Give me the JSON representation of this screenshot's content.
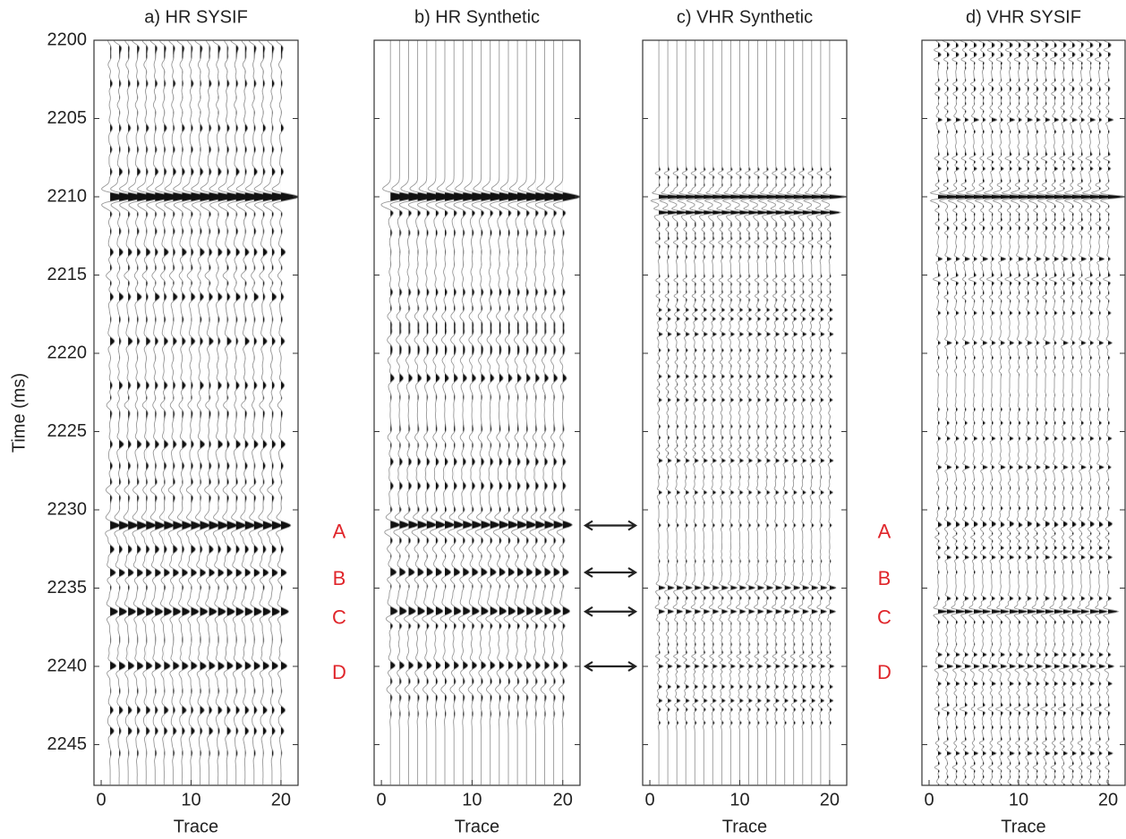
{
  "chart_data": [
    {
      "type": "wiggle",
      "title": "a) HR SYSIF",
      "xlabel": "Trace",
      "ylabel": "Time (ms)",
      "x": [
        1,
        2,
        3,
        4,
        5,
        6,
        7,
        8,
        9,
        10,
        11,
        12,
        13,
        14,
        15,
        16,
        17,
        18,
        19,
        20
      ],
      "xlim": [
        -0.8,
        21.9
      ],
      "xticks": [
        0,
        10,
        20
      ],
      "ylim": [
        2247.6,
        2200
      ],
      "yticks": [
        2200,
        2205,
        2210,
        2215,
        2220,
        2225,
        2230,
        2235,
        2240,
        2245
      ],
      "events": {
        "times": [
          2210,
          2231,
          2236.5,
          2240,
          2234
        ],
        "amplitudes": [
          1.6,
          0.9,
          0.7,
          0.6,
          0.5
        ]
      }
    },
    {
      "type": "wiggle",
      "title": "b) HR Synthetic",
      "xlabel": "Trace",
      "x": [
        1,
        2,
        3,
        4,
        5,
        6,
        7,
        8,
        9,
        10,
        11,
        12,
        13,
        14,
        15,
        16,
        17,
        18,
        19,
        20
      ],
      "xlim": [
        -0.8,
        21.9
      ],
      "xticks": [
        0,
        10,
        20
      ],
      "ylim": [
        2247.6,
        2200
      ],
      "yticks": [
        2200,
        2205,
        2210,
        2215,
        2220,
        2225,
        2230,
        2235,
        2240,
        2245
      ],
      "events": {
        "times": [
          2210,
          2231,
          2234,
          2236.5,
          2240
        ],
        "amplitudes": [
          1.6,
          0.9,
          0.6,
          0.7,
          0.6
        ]
      }
    },
    {
      "type": "wiggle",
      "title": "c) VHR Synthetic",
      "xlabel": "Trace",
      "x": [
        1,
        2,
        3,
        4,
        5,
        6,
        7,
        8,
        9,
        10,
        11,
        12,
        13,
        14,
        15,
        16,
        17,
        18,
        19,
        20
      ],
      "xlim": [
        -0.8,
        21.9
      ],
      "xticks": [
        0,
        10,
        20
      ],
      "ylim": [
        2247.6,
        2200
      ],
      "yticks": [
        2200,
        2205,
        2210,
        2215,
        2220,
        2225,
        2230,
        2235,
        2240,
        2245
      ],
      "events": {
        "times": [
          2210,
          2211,
          2235,
          2236.5,
          2240
        ],
        "amplitudes": [
          1.6,
          1.0,
          0.5,
          0.5,
          0.5
        ]
      }
    },
    {
      "type": "wiggle",
      "title": "d) VHR SYSIF",
      "xlabel": "Trace",
      "x": [
        1,
        2,
        3,
        4,
        5,
        6,
        7,
        8,
        9,
        10,
        11,
        12,
        13,
        14,
        15,
        16,
        17,
        18,
        19,
        20
      ],
      "xlim": [
        -0.8,
        21.9
      ],
      "xticks": [
        0,
        10,
        20
      ],
      "ylim": [
        2247.6,
        2200
      ],
      "yticks": [
        2200,
        2205,
        2210,
        2215,
        2220,
        2225,
        2230,
        2235,
        2240,
        2245
      ],
      "events": {
        "times": [
          2210,
          2236.5,
          2240,
          2231
        ],
        "amplitudes": [
          1.6,
          0.6,
          0.5,
          0.4
        ]
      }
    }
  ],
  "annotations": {
    "labels": [
      "A",
      "B",
      "C",
      "D"
    ],
    "times": [
      2231,
      2234,
      2236.5,
      2240
    ]
  }
}
